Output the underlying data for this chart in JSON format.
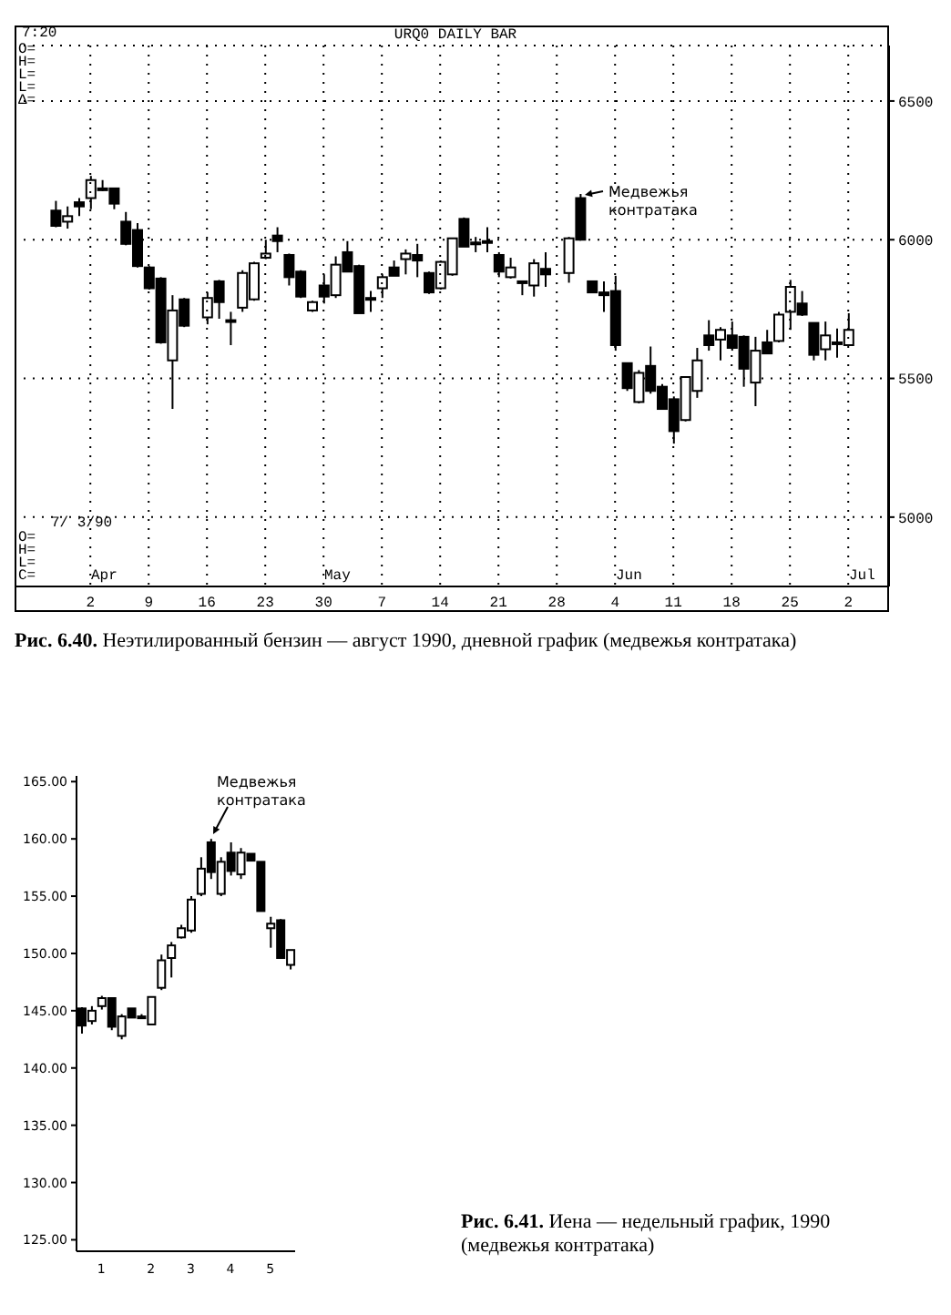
{
  "chart_data": [
    {
      "type": "candlestick",
      "title": "URQ0 DAILY BAR",
      "color": "#000000",
      "grid": true,
      "categories": [
        null,
        null,
        null,
        null,
        null,
        null,
        "2",
        null,
        null,
        null,
        null,
        "9",
        null,
        null,
        null,
        null,
        "16",
        null,
        null,
        null,
        null,
        "23",
        null,
        null,
        null,
        null,
        "30",
        null,
        null,
        null,
        null,
        "7",
        null,
        null,
        null,
        null,
        "14",
        null,
        null,
        null,
        null,
        "21",
        null,
        null,
        null,
        null,
        "28",
        null,
        null,
        null,
        null,
        "4",
        null,
        null,
        null,
        null,
        "11",
        null,
        null,
        null,
        null,
        "18",
        null,
        null,
        null,
        null,
        "25",
        null,
        null,
        null,
        null,
        "2",
        null,
        null,
        null
      ],
      "ohlc": [
        null,
        null,
        null,
        [
          6105,
          6140,
          6045,
          6050
        ],
        [
          6065,
          6120,
          6040,
          6085
        ],
        [
          6135,
          6150,
          6085,
          6120
        ],
        [
          6150,
          6230,
          6110,
          6215
        ],
        [
          6185,
          6215,
          6175,
          6180
        ],
        [
          6185,
          6185,
          6110,
          6130
        ],
        [
          6065,
          6100,
          5980,
          5985
        ],
        [
          6035,
          6060,
          5900,
          5905
        ],
        [
          5900,
          5905,
          5820,
          5825
        ],
        [
          5860,
          5865,
          5625,
          5630
        ],
        [
          5565,
          5800,
          5390,
          5745
        ],
        [
          5785,
          5790,
          5685,
          5690
        ],
        null,
        [
          5720,
          5810,
          5695,
          5790
        ],
        [
          5850,
          5855,
          5715,
          5775
        ],
        [
          5710,
          5740,
          5620,
          5705
        ],
        [
          5755,
          5890,
          5740,
          5880
        ],
        [
          5785,
          5920,
          5780,
          5915
        ],
        [
          5935,
          6000,
          5930,
          5950
        ],
        [
          6015,
          6045,
          5955,
          5995
        ],
        [
          5945,
          5950,
          5835,
          5865
        ],
        [
          5885,
          5890,
          5790,
          5795
        ],
        [
          5745,
          5780,
          5740,
          5775
        ],
        [
          5835,
          5875,
          5770,
          5795
        ],
        [
          5800,
          5940,
          5790,
          5910
        ],
        [
          5955,
          5995,
          5885,
          5885
        ],
        [
          5905,
          5910,
          5735,
          5735
        ],
        [
          5790,
          5815,
          5740,
          5785
        ],
        [
          5825,
          5875,
          5790,
          5865
        ],
        [
          5900,
          5925,
          5870,
          5870
        ],
        [
          5930,
          5965,
          5875,
          5950
        ],
        [
          5945,
          5985,
          5865,
          5925
        ],
        [
          5880,
          5885,
          5805,
          5810
        ],
        [
          5825,
          5925,
          5820,
          5920
        ],
        [
          5875,
          6005,
          5870,
          6005
        ],
        [
          6075,
          6080,
          5975,
          5975
        ],
        [
          5990,
          6010,
          5955,
          5985
        ],
        [
          5995,
          6045,
          5955,
          5990
        ],
        [
          5945,
          5955,
          5865,
          5885
        ],
        [
          5865,
          5935,
          5860,
          5900
        ],
        [
          5850,
          5850,
          5800,
          5845
        ],
        [
          5835,
          5930,
          5795,
          5915
        ],
        [
          5895,
          5955,
          5830,
          5875
        ],
        null,
        [
          5880,
          6010,
          5845,
          6005
        ],
        [
          6150,
          6165,
          6000,
          6000
        ],
        [
          5850,
          5850,
          5810,
          5810
        ],
        [
          5810,
          5850,
          5740,
          5800
        ],
        [
          5815,
          5870,
          5600,
          5620
        ],
        [
          5555,
          5555,
          5455,
          5465
        ],
        [
          5415,
          5530,
          5410,
          5520
        ],
        [
          5545,
          5615,
          5445,
          5455
        ],
        [
          5470,
          5480,
          5390,
          5390
        ],
        [
          5425,
          5435,
          5265,
          5310
        ],
        [
          5350,
          5505,
          5345,
          5505
        ],
        [
          5455,
          5610,
          5430,
          5565
        ],
        [
          5655,
          5710,
          5600,
          5620
        ],
        [
          5640,
          5685,
          5565,
          5675
        ],
        [
          5655,
          5705,
          5600,
          5610
        ],
        [
          5650,
          5655,
          5470,
          5535
        ],
        [
          5485,
          5650,
          5400,
          5600
        ],
        [
          5630,
          5675,
          5590,
          5590
        ],
        [
          5635,
          5740,
          5630,
          5730
        ],
        [
          5740,
          5855,
          5675,
          5830
        ],
        [
          5770,
          5815,
          5725,
          5730
        ],
        [
          5700,
          5700,
          5565,
          5585
        ],
        [
          5605,
          5705,
          5565,
          5655
        ],
        [
          5630,
          5680,
          5575,
          5625
        ],
        [
          5620,
          5735,
          5620,
          5675
        ],
        null,
        null,
        null
      ],
      "ylim": [
        4750,
        6700
      ],
      "yticks": [
        5000,
        5500,
        6000,
        6500
      ],
      "annotations": [
        "7:20",
        "O=",
        "H=",
        "L=",
        "L=",
        "Δ=",
        "7/ 3/90",
        "O=",
        "H=",
        "L=",
        "C=",
        "Apr",
        "May",
        "Jun",
        "Jul",
        "Медвежья контратака",
        "Рис. 6.40. Неэтилированный бензин — август 1990, дневной график (медвежья контратака)"
      ]
    },
    {
      "type": "candlestick",
      "color": "#000000",
      "categories": [
        null,
        null,
        "1",
        null,
        null,
        null,
        null,
        "2",
        null,
        null,
        null,
        "3",
        null,
        null,
        null,
        "4",
        null,
        null,
        null,
        "5",
        null,
        null
      ],
      "ohlc": [
        [
          145.2,
          145.3,
          143.0,
          143.7
        ],
        [
          144.1,
          145.4,
          143.8,
          145.0
        ],
        [
          145.4,
          146.3,
          145.1,
          146.1
        ],
        [
          146.1,
          146.1,
          143.3,
          143.6
        ],
        [
          142.8,
          144.7,
          142.5,
          144.5
        ],
        [
          145.2,
          145.2,
          144.4,
          144.4
        ],
        [
          144.5,
          144.7,
          144.3,
          144.5
        ],
        [
          143.8,
          146.2,
          143.8,
          146.2
        ],
        [
          147.0,
          149.9,
          146.8,
          149.4
        ],
        [
          149.6,
          151.0,
          147.9,
          150.7
        ],
        [
          151.4,
          152.5,
          151.3,
          152.2
        ],
        [
          152.0,
          155.0,
          151.8,
          154.7
        ],
        [
          155.2,
          158.4,
          155.0,
          157.4
        ],
        [
          159.7,
          160.0,
          156.5,
          157.1
        ],
        [
          155.2,
          158.4,
          155.0,
          158.0
        ],
        [
          158.8,
          159.7,
          156.8,
          157.2
        ],
        [
          156.9,
          159.2,
          156.5,
          158.8
        ],
        [
          158.7,
          158.7,
          158.1,
          158.1
        ],
        [
          158.0,
          158.0,
          153.7,
          153.7
        ],
        [
          152.2,
          153.2,
          150.5,
          152.6
        ],
        [
          152.9,
          153.0,
          149.6,
          149.6
        ],
        [
          149.0,
          150.3,
          148.6,
          150.3
        ]
      ],
      "ylim": [
        124,
        165.5
      ],
      "yticks": [
        {
          "value": 125,
          "label": "125.00"
        },
        {
          "value": 130,
          "label": "130.00"
        },
        {
          "value": 135,
          "label": "135.00"
        },
        {
          "value": 140,
          "label": "140.00"
        },
        {
          "value": 145,
          "label": "145.00"
        },
        {
          "value": 150,
          "label": "150.00"
        },
        {
          "value": 155,
          "label": "155.00"
        },
        {
          "value": 160,
          "label": "160.00"
        },
        {
          "value": 165,
          "label": "165.00"
        }
      ],
      "annotations": [
        "Медвежья контратака",
        "Рис. 6.41. Иена — недельный график, 1990 (медвежья контратака)"
      ]
    }
  ]
}
